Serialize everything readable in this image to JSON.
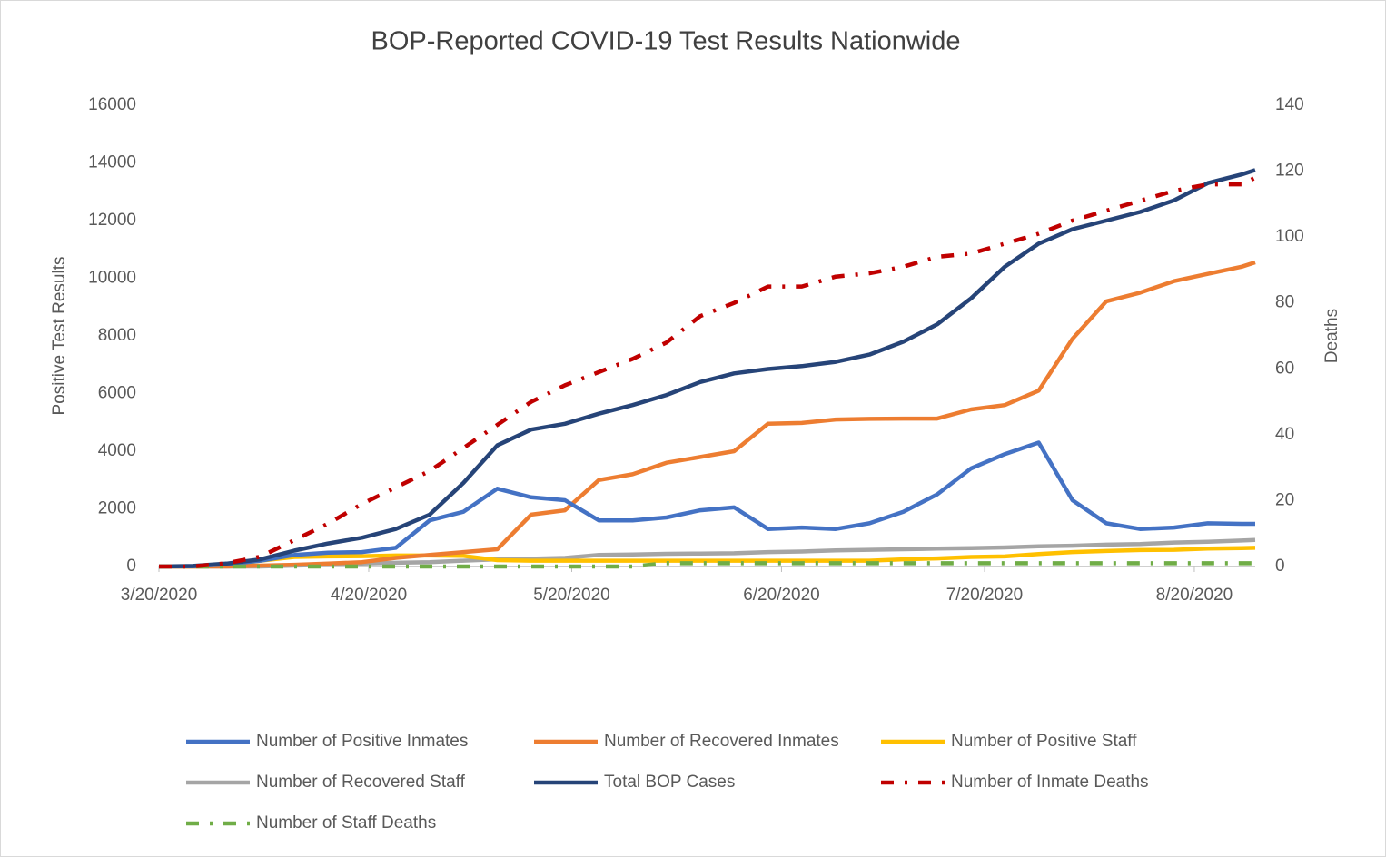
{
  "chart_data": {
    "type": "line",
    "title": "BOP-Reported COVID-19 Test Results Nationwide",
    "y_label": "Positive Test Results",
    "y2_label": "Deaths",
    "x": [
      "3/20/2020",
      "3/25/2020",
      "3/30/2020",
      "4/4/2020",
      "4/9/2020",
      "4/14/2020",
      "4/19/2020",
      "4/24/2020",
      "4/29/2020",
      "5/4/2020",
      "5/9/2020",
      "5/14/2020",
      "5/19/2020",
      "5/24/2020",
      "5/29/2020",
      "6/3/2020",
      "6/8/2020",
      "6/13/2020",
      "6/18/2020",
      "6/23/2020",
      "6/28/2020",
      "7/3/2020",
      "7/8/2020",
      "7/13/2020",
      "7/18/2020",
      "7/23/2020",
      "7/28/2020",
      "8/2/2020",
      "8/7/2020",
      "8/12/2020",
      "8/17/2020",
      "8/22/2020",
      "8/27/2020",
      "8/29/2020"
    ],
    "xlim": [
      "3/20/2020",
      "8/29/2020"
    ],
    "xticks": [
      "3/20/2020",
      "4/20/2020",
      "5/20/2020",
      "6/20/2020",
      "7/20/2020",
      "8/20/2020"
    ],
    "ylim": [
      0,
      16000
    ],
    "yticks": [
      0,
      2000,
      4000,
      6000,
      8000,
      10000,
      12000,
      14000,
      16000
    ],
    "y2lim": [
      0,
      140
    ],
    "y2ticks": [
      0,
      20,
      40,
      60,
      80,
      100,
      120,
      140
    ],
    "grid": false,
    "legend": "bottom",
    "series": [
      {
        "name": "Number of Positive Inmates",
        "color": "#4472c4",
        "style": "solid",
        "values": [
          0,
          10,
          80,
          200,
          400,
          480,
          500,
          650,
          1600,
          1900,
          2700,
          2400,
          2300,
          1600,
          1600,
          1700,
          1950,
          2050,
          1300,
          1350,
          1300,
          1500,
          1900,
          2500,
          3400,
          3900,
          4300,
          2300,
          1500,
          1300,
          1350,
          1500,
          1480,
          1480
        ]
      },
      {
        "name": "Number of Recovered Inmates",
        "color": "#ed7d31",
        "style": "solid",
        "values": [
          0,
          0,
          0,
          30,
          60,
          100,
          150,
          300,
          400,
          500,
          600,
          1800,
          1950,
          3000,
          3200,
          3600,
          3800,
          4000,
          4950,
          4980,
          5100,
          5120,
          5130,
          5130,
          5450,
          5600,
          6100,
          7900,
          9200,
          9500,
          9900,
          10150,
          10400,
          10550
        ]
      },
      {
        "name": "Number of Positive Staff",
        "color": "#ffc000",
        "style": "solid",
        "values": [
          0,
          0,
          40,
          200,
          330,
          350,
          360,
          380,
          380,
          370,
          220,
          200,
          200,
          200,
          200,
          200,
          200,
          200,
          200,
          200,
          200,
          200,
          250,
          280,
          330,
          350,
          430,
          500,
          540,
          570,
          580,
          620,
          640,
          650
        ]
      },
      {
        "name": "Number of Recovered Staff",
        "color": "#a5a5a5",
        "style": "solid",
        "values": [
          0,
          0,
          0,
          0,
          30,
          60,
          100,
          130,
          150,
          200,
          250,
          270,
          300,
          400,
          420,
          440,
          450,
          460,
          500,
          520,
          560,
          580,
          600,
          620,
          640,
          660,
          700,
          720,
          760,
          780,
          830,
          860,
          900,
          920
        ]
      },
      {
        "name": "Total BOP Cases",
        "color": "#264478",
        "style": "solid",
        "values": [
          0,
          20,
          100,
          250,
          550,
          800,
          1000,
          1300,
          1800,
          2900,
          4200,
          4750,
          4950,
          5300,
          5600,
          5950,
          6400,
          6700,
          6850,
          6950,
          7100,
          7350,
          7800,
          8400,
          9300,
          10400,
          11200,
          11700,
          12000,
          12300,
          12700,
          13300,
          13600,
          13750
        ]
      },
      {
        "name": "Number of Inmate Deaths",
        "color": "#c00000",
        "style": "dash-dot",
        "axis": "y2",
        "values": [
          0,
          0,
          1,
          3,
          8,
          13,
          19,
          24,
          29,
          36,
          43,
          50,
          55,
          59,
          63,
          68,
          76,
          80,
          85,
          85,
          88,
          89,
          91,
          94,
          95,
          98,
          101,
          105,
          108,
          111,
          114,
          116,
          116,
          118
        ]
      },
      {
        "name": "Number of Staff Deaths",
        "color": "#70ad47",
        "style": "dash-dot",
        "axis": "y2",
        "values": [
          0,
          0,
          0,
          0,
          0,
          0,
          0,
          0,
          0,
          0,
          0,
          0,
          0,
          0,
          0,
          1,
          1,
          1,
          1,
          1,
          1,
          1,
          1,
          1,
          1,
          1,
          1,
          1,
          1,
          1,
          1,
          1,
          1,
          1
        ]
      }
    ]
  }
}
